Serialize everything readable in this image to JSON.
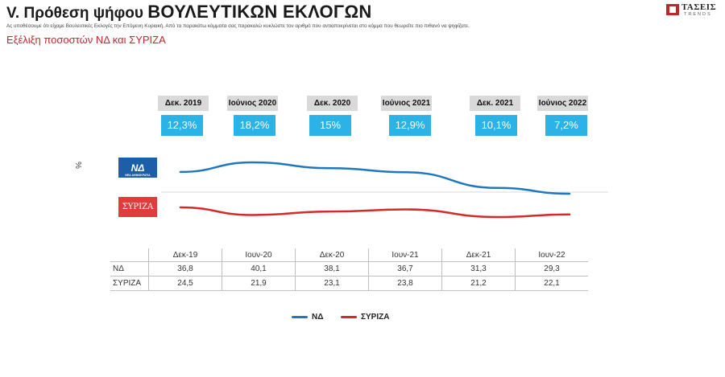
{
  "header": {
    "title_prefix": "V. Πρόθεση ψήφου ",
    "title_main": "ΒΟΥΛΕΥΤΙΚΩΝ ΕΚΛΟΓΩΝ",
    "question": "Ας υποθέσουμε ότι είχαμε Βουλευτικές Εκλογές την Επόμενη Κυριακή. Από τα παρακάτω κόμματα σας παρακαλώ κυκλώστε τον αριθμό που αντιαποκρίνεται στο κόμμα που θεωρείτε πιο πιθανό να ψηφίζατε.",
    "subtitle": "Εξέλιξη ποσοστών ΝΔ και ΣΥΡΙΖΑ"
  },
  "brand": {
    "name": "ΤΑΣΕΙΣ",
    "tagline": "TRENDS",
    "color": "#c0272d"
  },
  "axis_note": "%",
  "periods": [
    {
      "label": "Δεκ. 2019",
      "gap": "12,3%"
    },
    {
      "label": "Ιούνιος 2020",
      "gap": "18,2%"
    },
    {
      "label": "Δεκ. 2020",
      "gap": "15%"
    },
    {
      "label": "Ιούνιος 2021",
      "gap": "12,9%"
    },
    {
      "label": "Δεκ. 2021",
      "gap": "10,1%"
    },
    {
      "label": "Ιούνιος 2022",
      "gap": "7,2%"
    }
  ],
  "party_logos": {
    "nd": "ΝΔ",
    "nd_small": "ΝΕΑ ΔΗΜΟΚΡΑΤΙΑ",
    "syriza": "ΣΥΡΙΖΑ"
  },
  "chart_data": {
    "type": "line",
    "categories": [
      "Δεκ-19",
      "Ιουν-20",
      "Δεκ-20",
      "Ιουν-21",
      "Δεκ-21",
      "Ιουν-22"
    ],
    "series": [
      {
        "name": "ΝΔ",
        "values": [
          36.8,
          40.1,
          38.1,
          36.7,
          31.3,
          29.3
        ],
        "color": "#1f77c0"
      },
      {
        "name": "ΣΥΡΙΖΑ",
        "values": [
          24.5,
          21.9,
          23.1,
          23.8,
          21.2,
          22.1
        ],
        "color": "#d42a2a"
      }
    ],
    "title": "Εξέλιξη ποσοστών ΝΔ και ΣΥΡΙΖΑ",
    "ylabel": "%",
    "legend": "bottom",
    "grid": false
  }
}
